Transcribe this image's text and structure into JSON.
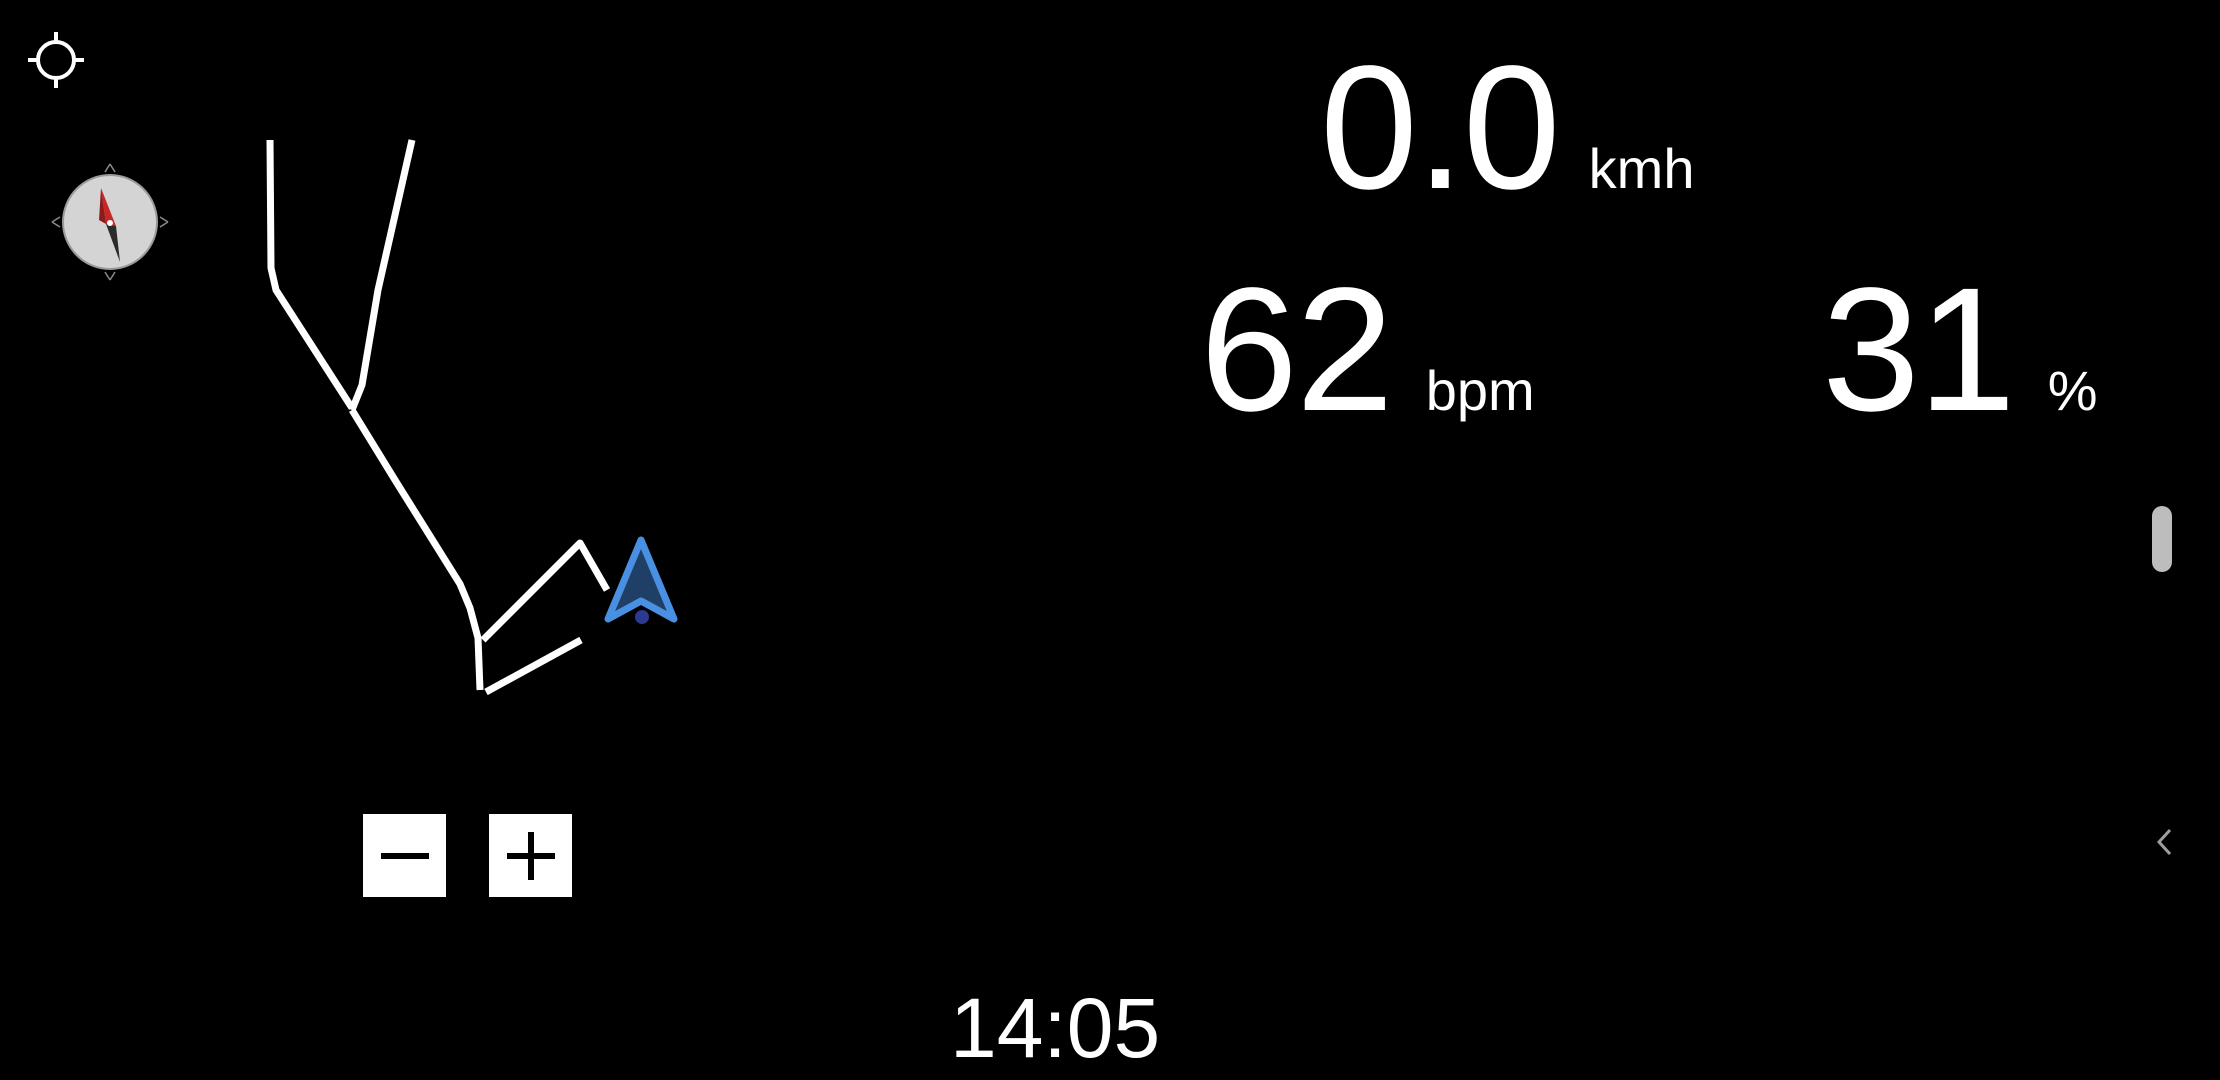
{
  "map": {
    "locate_icon": "crosshair-target-icon",
    "compass_icon": "compass-icon",
    "position_marker_icon": "navigation-arrow-icon",
    "track_color": "#ffffff",
    "marker_color": "#4a90e2",
    "zoom_out_icon": "minus-icon",
    "zoom_in_icon": "plus-icon"
  },
  "metrics": {
    "speed": {
      "value": "0.0",
      "unit": "kmh"
    },
    "heart_rate": {
      "value": "62",
      "unit": "bpm"
    },
    "percent": {
      "value": "31",
      "unit": "%"
    }
  },
  "clock": {
    "time": "14:05"
  },
  "edge": {
    "scrollbar_icon": "scroll-handle",
    "back_icon": "chevron-left-icon"
  }
}
